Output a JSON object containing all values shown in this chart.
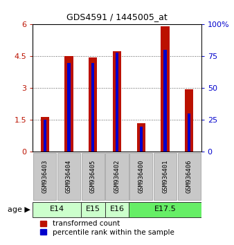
{
  "title": "GDS4591 / 1445005_at",
  "samples": [
    "GSM936403",
    "GSM936404",
    "GSM936405",
    "GSM936402",
    "GSM936400",
    "GSM936401",
    "GSM936406"
  ],
  "transformed_counts": [
    1.65,
    4.5,
    4.45,
    4.75,
    1.35,
    5.9,
    2.95
  ],
  "percentile_ranks": [
    25,
    70,
    70,
    78,
    20,
    80,
    30
  ],
  "age_groups": [
    {
      "label": "E14",
      "start": 0,
      "end": 1,
      "color": "#ccffcc"
    },
    {
      "label": "E15",
      "start": 2,
      "end": 2,
      "color": "#ccffcc"
    },
    {
      "label": "E16",
      "start": 3,
      "end": 3,
      "color": "#ccffcc"
    },
    {
      "label": "E17.5",
      "start": 4,
      "end": 6,
      "color": "#66ee66"
    }
  ],
  "ylim_left": [
    0,
    6
  ],
  "ylim_right": [
    0,
    100
  ],
  "yticks_left": [
    0,
    1.5,
    3,
    4.5,
    6
  ],
  "yticks_right": [
    0,
    25,
    50,
    75,
    100
  ],
  "bar_color": "#bb1100",
  "percentile_color": "#0000cc",
  "grid_color": "#555555",
  "bg_color": "#ffffff",
  "plot_bg_color": "#ffffff",
  "bar_width": 0.35,
  "percentile_bar_width": 0.12,
  "sample_bg_color": "#c8c8c8",
  "legend_red_label": "transformed count",
  "legend_blue_label": "percentile rank within the sample"
}
